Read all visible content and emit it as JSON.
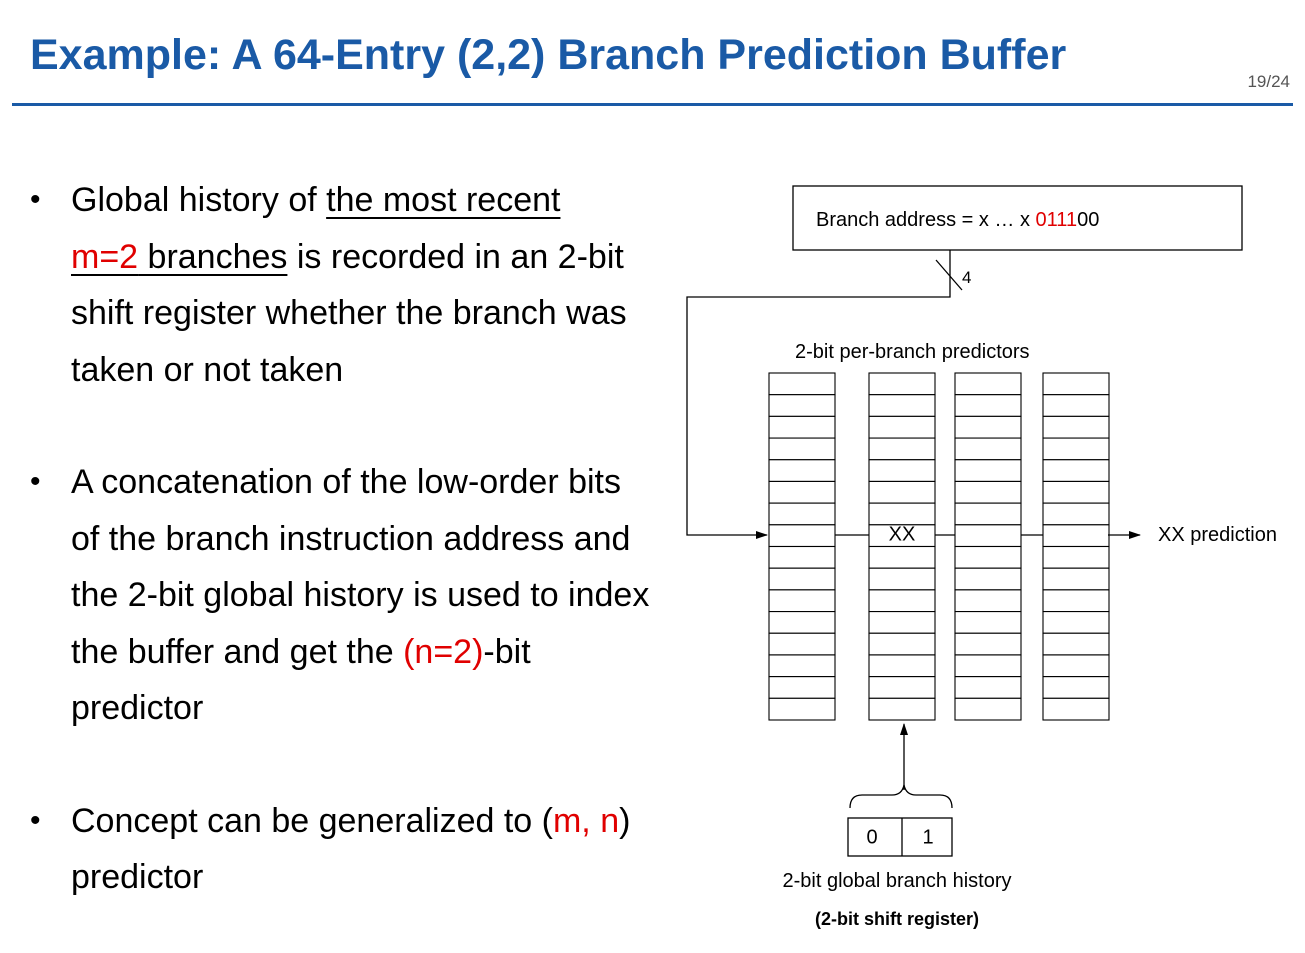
{
  "slide": {
    "title": "Example: A 64-Entry (2,2) Branch Prediction Buffer",
    "page_number": "19/24"
  },
  "bullets": [
    {
      "b1_pre": "Global history of ",
      "b1_u1": "the most recent",
      "b1_u2_red": "m=2",
      "b1_u2_rest": " branches",
      "b1_post": " is recorded in an 2-bit shift register whether the branch was taken or not taken"
    },
    {
      "b2_pre": "A concatenation of the low-order bits of the branch instruction address and the 2-bit global history is used to index the buffer and get the ",
      "b2_red": "(n=2)",
      "b2_post": "-bit predictor"
    },
    {
      "b3_pre": "Concept can be generalized to (",
      "b3_red": "m, n",
      "b3_post": ") predictor"
    }
  ],
  "diagram": {
    "address_label_prefix": "Branch address = x … x ",
    "address_bits_red": "0111",
    "address_bits_black": "00",
    "bit_width_label": "4",
    "predictors_label": "2-bit per-branch predictors",
    "selected_entry": "XX",
    "prediction_label": "XX prediction",
    "history_bits": [
      "0",
      "1"
    ],
    "history_label": "2-bit global branch history",
    "shift_register_label": "(2-bit shift register)",
    "columns": 4,
    "rows_per_column": 16,
    "selected_row": 7,
    "selected_column": 1
  },
  "colors": {
    "title": "#1a5aa6",
    "highlight": "#e00000"
  }
}
